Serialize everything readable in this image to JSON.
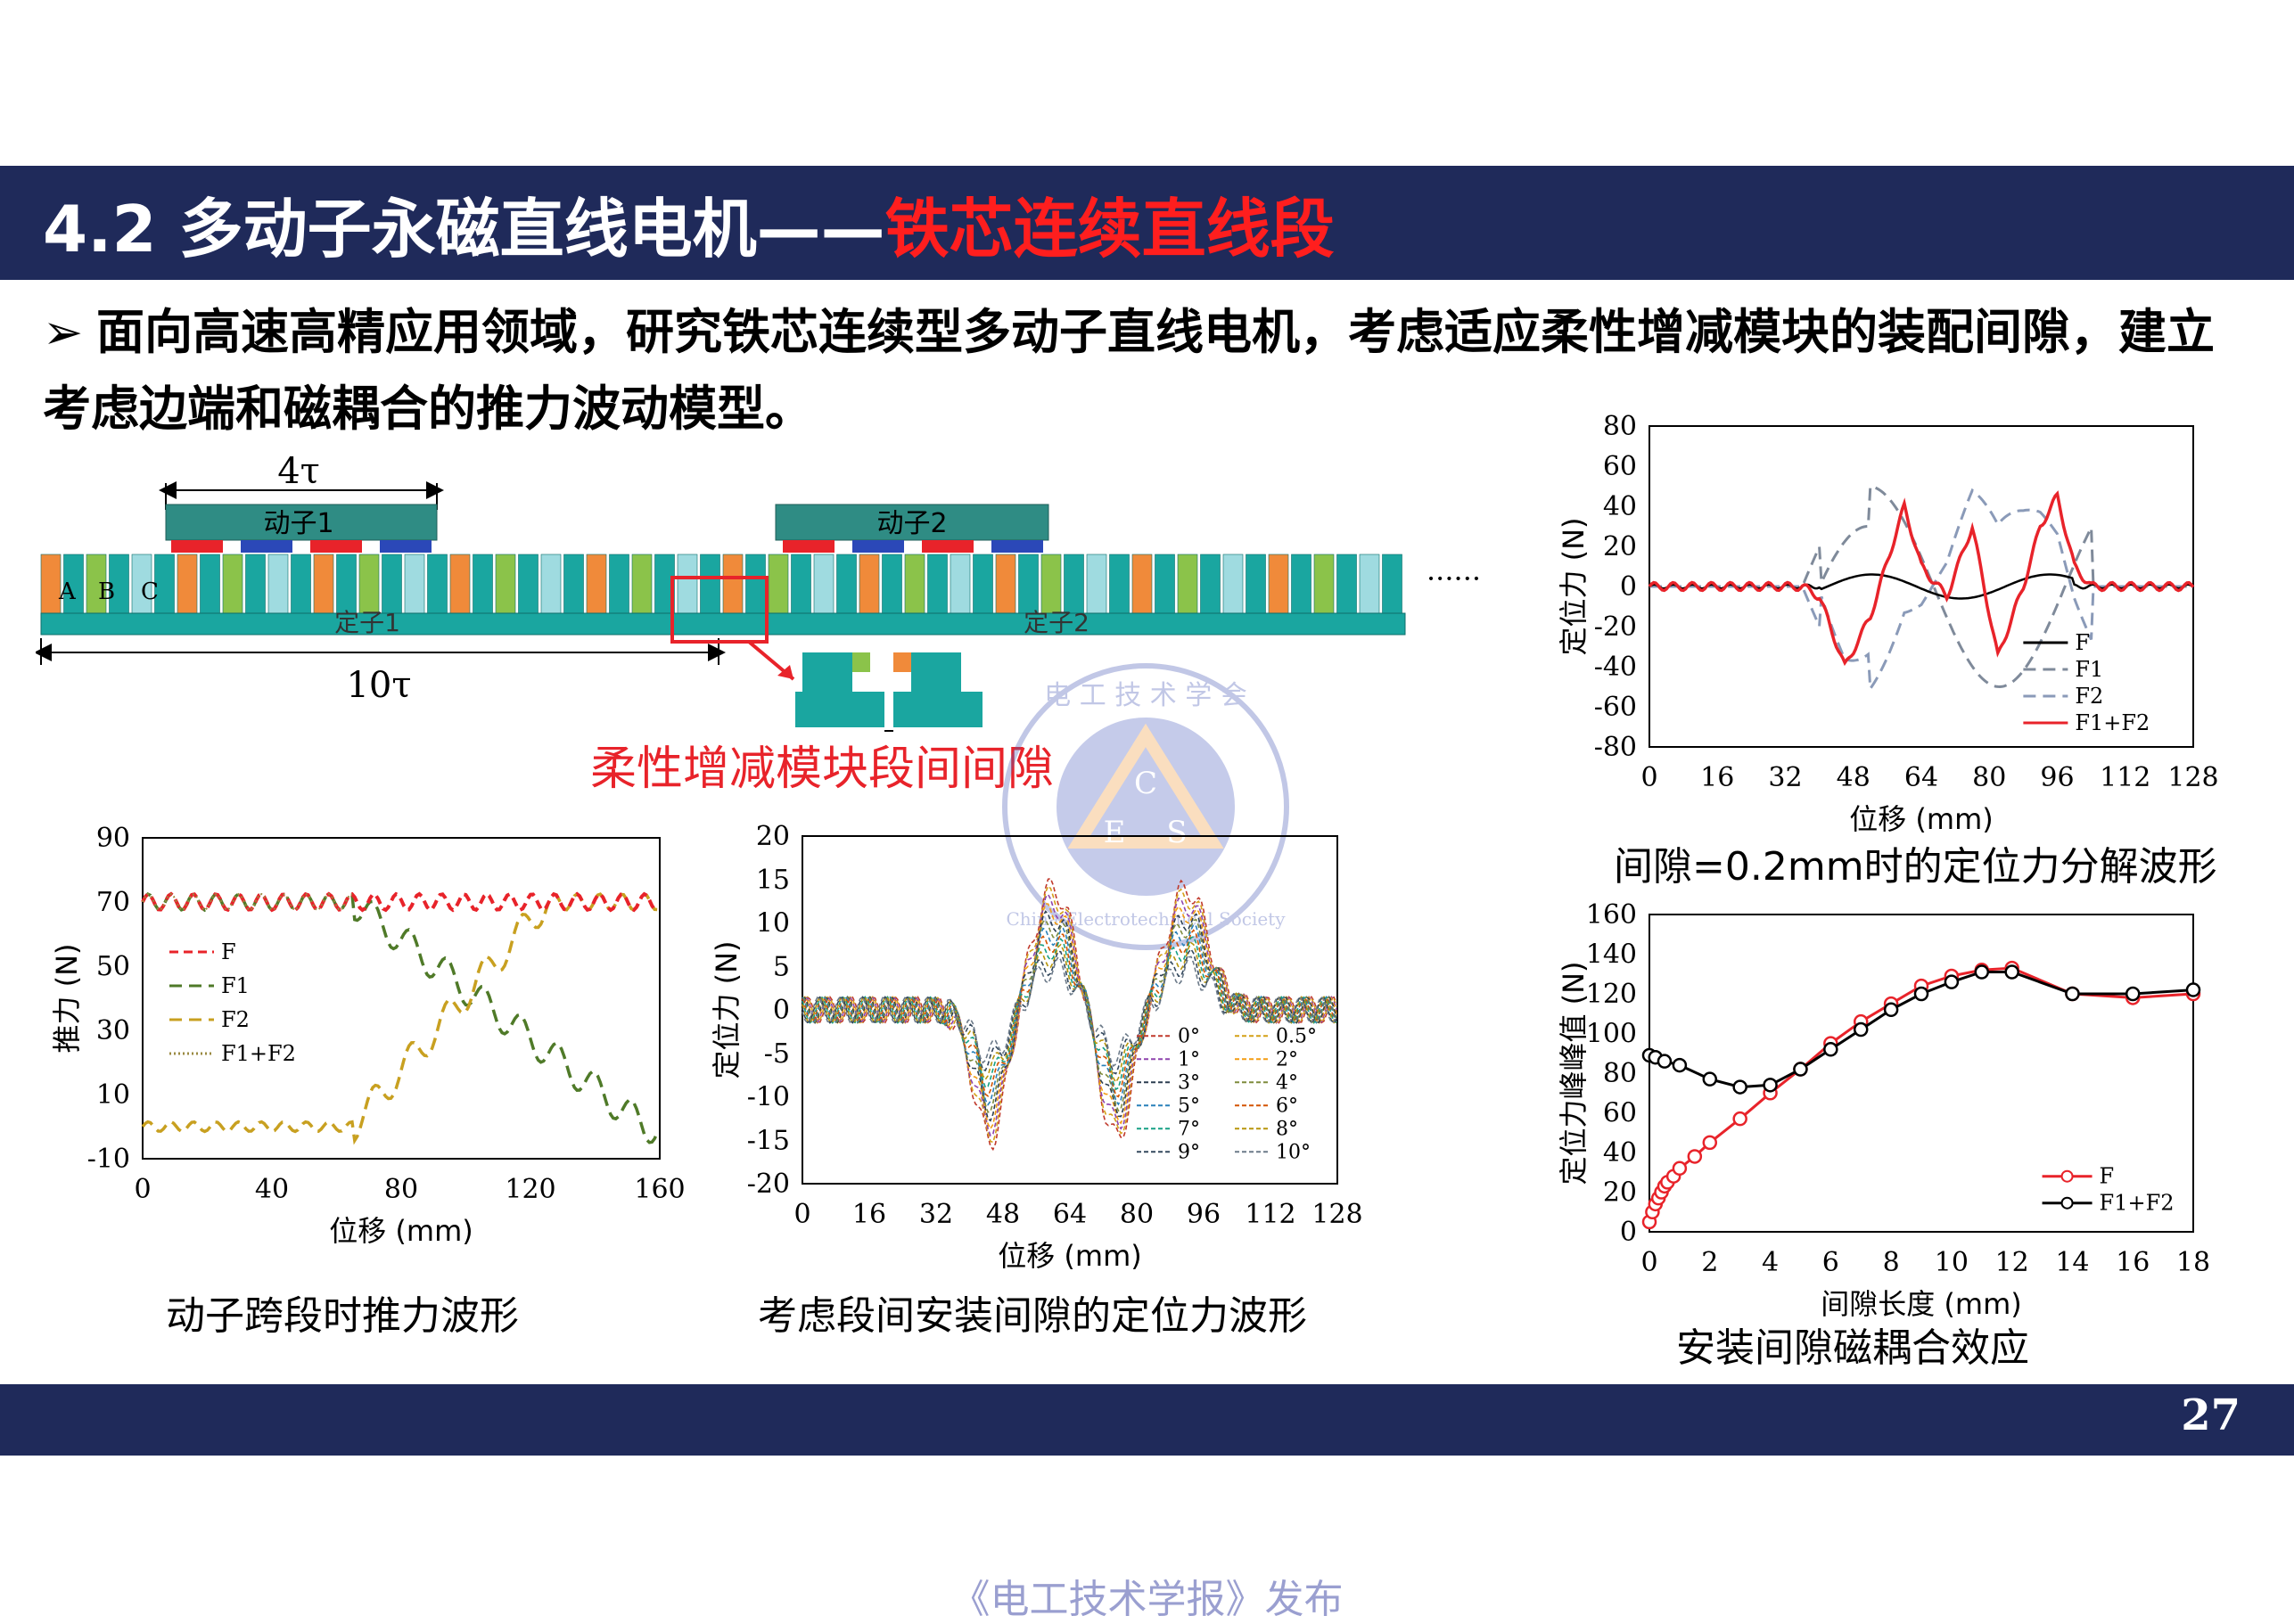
{
  "header": {
    "section": "4.2 多动子永磁直线电机——",
    "highlight": "铁芯连续直线段"
  },
  "bullet": {
    "marker": "➢",
    "text": "面向高速高精应用领域，研究铁芯连续型多动子直线电机，考虑适应柔性增减模块的装配间隙，建立考虑边端和磁耦合的推力波动模型。"
  },
  "diagram": {
    "top_dim": "4τ",
    "mover1": "动子1",
    "mover2": "动子2",
    "phases": [
      "A",
      "B",
      "C"
    ],
    "stator1": "定子1",
    "stator2": "定子2",
    "bottom_dim": "10τ",
    "ellipsis": "······",
    "gap_label": "柔性增减模块段间间隙"
  },
  "captions": {
    "thrust": "动子跨段时推力波形",
    "cogging_gap": "考虑段间安装间隙的定位力波形",
    "decomp": "间隙=0.2mm时的定位力分解波形",
    "coupling": "安装间隙磁耦合效应"
  },
  "footer": {
    "page": "27",
    "publisher": "《电工技术学报》发布"
  },
  "watermark": {
    "top_arc": "电 工 技 术 学 会",
    "letters": [
      "C",
      "E",
      "S"
    ],
    "bottom_arc": "China Electrotechnical Society"
  },
  "colors": {
    "navy": "#1f2a5a",
    "accent": "#ff1e1e",
    "stator": "#1aa6a0",
    "magnet_red": "#e8232a",
    "magnet_blue": "#2b48b8"
  },
  "chart_data": [
    {
      "type": "line",
      "ylabel": "推力 (N)",
      "xlabel": "位移 (mm)",
      "xlim": [
        0,
        160
      ],
      "ylim": [
        -10,
        90
      ],
      "xticks": [
        "0",
        "40",
        "80",
        "120",
        "160"
      ],
      "yticks": [
        "90",
        "70",
        "50",
        "30",
        "10",
        "-10"
      ],
      "series": [
        {
          "name": "F",
          "color": "#e8232a",
          "style": "dashed"
        },
        {
          "name": "F1",
          "color": "#4f7a28",
          "style": "dashed"
        },
        {
          "name": "F2",
          "color": "#c8a020",
          "style": "dashed"
        },
        {
          "name": "F1+F2",
          "color": "#c8a020",
          "style": "dotted"
        }
      ],
      "approx": {
        "F": "~70 constant",
        "F1": "70 → 0 between 65 and 160",
        "F2": "0 → 70 between 65 and 125"
      }
    },
    {
      "type": "line",
      "ylabel": "定位力 (N)",
      "xlabel": "位移 (mm)",
      "xlim": [
        0,
        128
      ],
      "ylim": [
        -20,
        20
      ],
      "xticks": [
        "0",
        "16",
        "32",
        "48",
        "64",
        "80",
        "96",
        "112",
        "128"
      ],
      "yticks": [
        "20",
        "15",
        "10",
        "5",
        "0",
        "-5",
        "-10",
        "-15",
        "-20"
      ],
      "series": [
        {
          "name": "0°"
        },
        {
          "name": "0.5°"
        },
        {
          "name": "1°"
        },
        {
          "name": "2°"
        },
        {
          "name": "3°"
        },
        {
          "name": "4°"
        },
        {
          "name": "5°"
        },
        {
          "name": "6°"
        },
        {
          "name": "7°"
        },
        {
          "name": "8°"
        },
        {
          "name": "9°"
        },
        {
          "name": "10°"
        }
      ],
      "approx": {
        "peaks": [
          [
            60,
            14
          ],
          [
            92,
            14
          ]
        ],
        "troughs": [
          [
            45,
            -15
          ],
          [
            75,
            -15
          ]
        ]
      }
    },
    {
      "type": "line",
      "ylabel": "定位力 (N)",
      "xlabel": "位移 (mm)",
      "xlim": [
        0,
        128
      ],
      "ylim": [
        -80,
        80
      ],
      "xticks": [
        "0",
        "16",
        "32",
        "48",
        "64",
        "80",
        "96",
        "112",
        "128"
      ],
      "yticks": [
        "80",
        "60",
        "40",
        "20",
        "0",
        "-20",
        "-40",
        "-60",
        "-80"
      ],
      "series": [
        {
          "name": "F",
          "color": "#000000"
        },
        {
          "name": "F1",
          "color": "#7f8a9a",
          "style": "dashed"
        },
        {
          "name": "F2",
          "color": "#8a9ab8",
          "style": "dashed"
        },
        {
          "name": "F1+F2",
          "color": "#e8232a"
        }
      ],
      "approx": {
        "F1+F2": {
          "x": [
            0,
            36,
            40,
            46,
            52,
            60,
            64,
            70,
            76,
            82,
            88,
            92,
            96,
            100,
            104,
            128
          ],
          "y": [
            0,
            0,
            -5,
            -40,
            -15,
            40,
            10,
            -5,
            30,
            -35,
            0,
            30,
            45,
            10,
            0,
            0
          ]
        }
      }
    },
    {
      "type": "line",
      "ylabel": "定位力峰峰值 (N)",
      "xlabel": "间隙长度 (mm)",
      "xlim": [
        0,
        18
      ],
      "ylim": [
        0,
        160
      ],
      "xticks": [
        "0",
        "2",
        "4",
        "6",
        "8",
        "10",
        "12",
        "14",
        "16",
        "18"
      ],
      "yticks": [
        "160",
        "140",
        "120",
        "100",
        "80",
        "60",
        "40",
        "20",
        "0"
      ],
      "series": [
        {
          "name": "F",
          "color": "#e8232a",
          "x": [
            0,
            0.1,
            0.2,
            0.3,
            0.4,
            0.5,
            0.6,
            0.8,
            1,
            1.5,
            2,
            3,
            4,
            5,
            6,
            7,
            8,
            9,
            10,
            11,
            12,
            14,
            16,
            18
          ],
          "y": [
            5,
            10,
            14,
            17,
            20,
            23,
            25,
            28,
            32,
            38,
            45,
            57,
            70,
            82,
            95,
            106,
            115,
            124,
            129,
            132,
            133,
            120,
            118,
            120
          ]
        },
        {
          "name": "F1+F2",
          "color": "#000000",
          "x": [
            0,
            0.2,
            0.5,
            1,
            2,
            3,
            4,
            5,
            6,
            7,
            8,
            9,
            10,
            11,
            12,
            14,
            16,
            18
          ],
          "y": [
            89,
            88,
            86,
            84,
            77,
            73,
            74,
            82,
            92,
            102,
            112,
            120,
            126,
            131,
            131,
            120,
            120,
            122
          ]
        }
      ]
    }
  ]
}
